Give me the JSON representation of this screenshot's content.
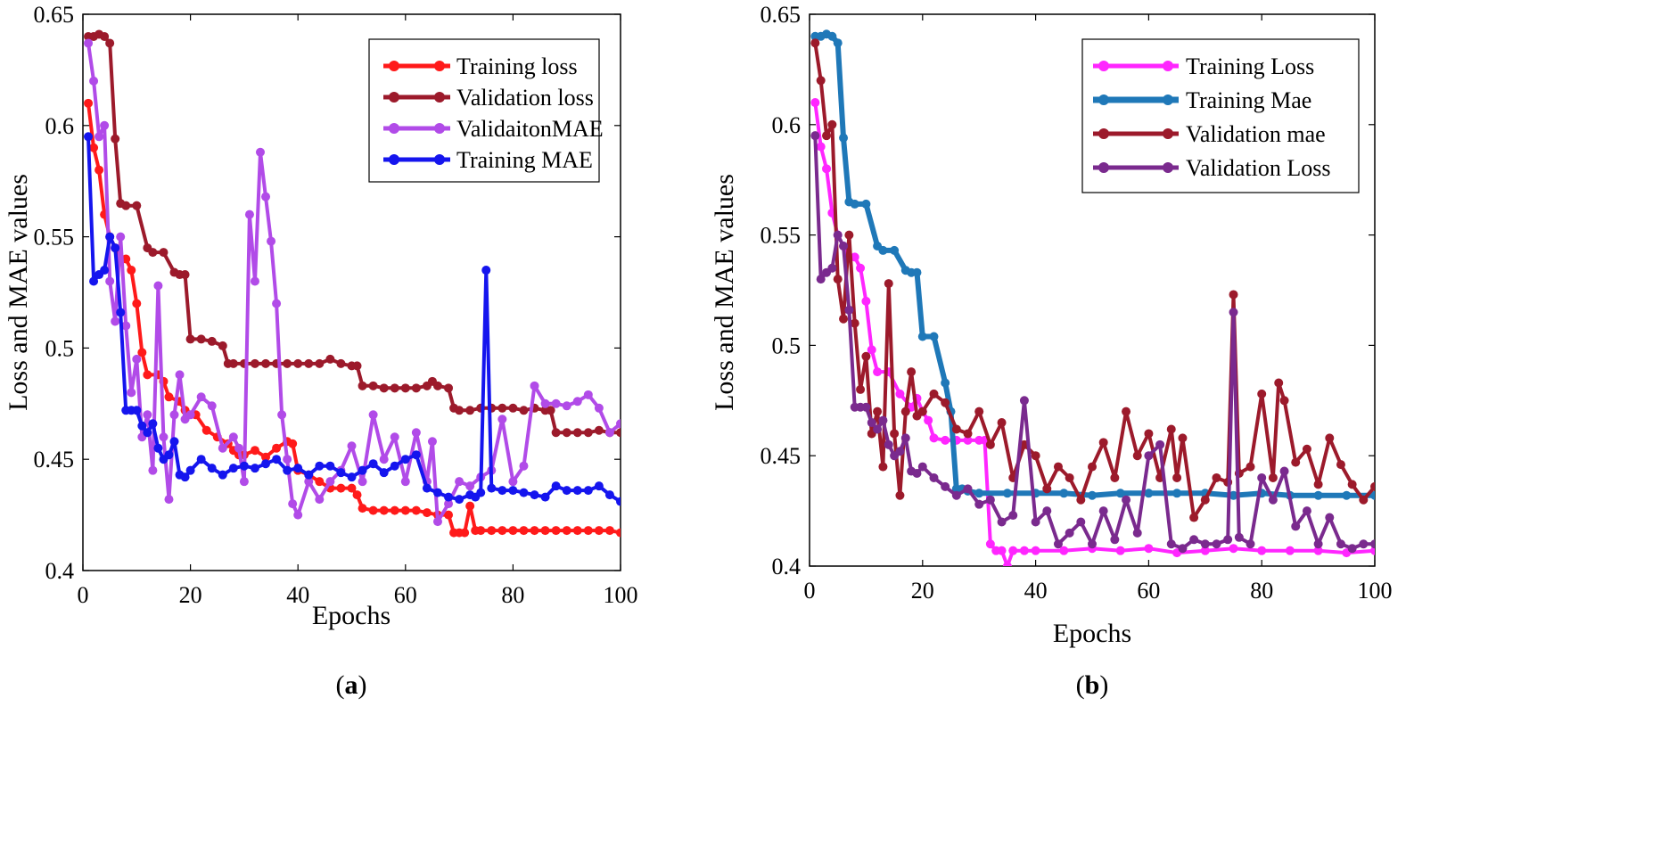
{
  "chart_data": [
    {
      "type": "line",
      "panel_label": "(a)",
      "xlabel": "Epochs",
      "ylabel": "Loss and MAE values",
      "xlim": [
        0,
        100
      ],
      "ylim": [
        0.4,
        0.65
      ],
      "xticks": [
        0,
        20,
        40,
        60,
        80,
        100
      ],
      "yticks": [
        0.4,
        0.45,
        0.5,
        0.55,
        0.6,
        0.65
      ],
      "xtick_labels": [
        "0",
        "20",
        "40",
        "60",
        "80",
        "100"
      ],
      "ytick_labels": [
        "0.4",
        "0.45",
        "0.5",
        "0.55",
        "0.6",
        "0.65"
      ],
      "legend_position": "top-right",
      "series": [
        {
          "name": "Training loss",
          "color": "#ff1a1a",
          "x": [
            1,
            2,
            3,
            4,
            5,
            6,
            7,
            8,
            9,
            10,
            11,
            12,
            14,
            15,
            16,
            18,
            19,
            21,
            23,
            25,
            27,
            28,
            29,
            30,
            32,
            34,
            36,
            38,
            39,
            40,
            42,
            44,
            46,
            48,
            50,
            51,
            52,
            54,
            56,
            58,
            60,
            62,
            64,
            66,
            68,
            69,
            70,
            71,
            72,
            73,
            74,
            76,
            78,
            80,
            82,
            84,
            86,
            88,
            90,
            92,
            94,
            96,
            98,
            100
          ],
          "y": [
            0.61,
            0.59,
            0.58,
            0.56,
            0.55,
            0.545,
            0.54,
            0.54,
            0.535,
            0.52,
            0.498,
            0.488,
            0.488,
            0.485,
            0.478,
            0.476,
            0.472,
            0.47,
            0.463,
            0.46,
            0.457,
            0.454,
            0.452,
            0.452,
            0.454,
            0.451,
            0.455,
            0.458,
            0.457,
            0.445,
            0.443,
            0.44,
            0.437,
            0.437,
            0.437,
            0.434,
            0.428,
            0.427,
            0.427,
            0.427,
            0.427,
            0.427,
            0.426,
            0.425,
            0.425,
            0.417,
            0.417,
            0.417,
            0.429,
            0.418,
            0.418,
            0.418,
            0.418,
            0.418,
            0.418,
            0.418,
            0.418,
            0.418,
            0.418,
            0.418,
            0.418,
            0.418,
            0.418,
            0.417
          ]
        },
        {
          "name": "Validation loss",
          "color": "#9c1a2b",
          "x": [
            1,
            2,
            3,
            4,
            5,
            6,
            7,
            8,
            10,
            12,
            13,
            15,
            17,
            18,
            19,
            20,
            22,
            24,
            26,
            27,
            28,
            30,
            32,
            34,
            36,
            38,
            40,
            42,
            44,
            46,
            48,
            50,
            51,
            52,
            54,
            56,
            58,
            60,
            62,
            64,
            65,
            66,
            68,
            69,
            70,
            72,
            74,
            76,
            78,
            80,
            82,
            84,
            86,
            87,
            88,
            90,
            92,
            94,
            96,
            98,
            100
          ],
          "y": [
            0.64,
            0.64,
            0.641,
            0.64,
            0.637,
            0.594,
            0.565,
            0.564,
            0.564,
            0.545,
            0.543,
            0.543,
            0.534,
            0.533,
            0.533,
            0.504,
            0.504,
            0.503,
            0.501,
            0.493,
            0.493,
            0.493,
            0.493,
            0.493,
            0.493,
            0.493,
            0.493,
            0.493,
            0.493,
            0.495,
            0.493,
            0.492,
            0.492,
            0.483,
            0.483,
            0.482,
            0.482,
            0.482,
            0.482,
            0.483,
            0.485,
            0.483,
            0.482,
            0.473,
            0.472,
            0.472,
            0.473,
            0.473,
            0.473,
            0.473,
            0.472,
            0.473,
            0.472,
            0.472,
            0.462,
            0.462,
            0.462,
            0.462,
            0.463,
            0.462,
            0.462
          ]
        },
        {
          "name": "ValidaitonMAE",
          "color": "#b14be8",
          "x": [
            1,
            2,
            3,
            4,
            5,
            6,
            7,
            8,
            9,
            10,
            11,
            12,
            13,
            14,
            15,
            16,
            17,
            18,
            19,
            20,
            22,
            24,
            26,
            28,
            29,
            30,
            31,
            32,
            33,
            34,
            35,
            36,
            37,
            38,
            39,
            40,
            42,
            44,
            46,
            48,
            50,
            52,
            54,
            56,
            58,
            60,
            62,
            64,
            65,
            66,
            68,
            70,
            72,
            74,
            76,
            78,
            80,
            82,
            84,
            86,
            88,
            90,
            92,
            94,
            96,
            98,
            100
          ],
          "y": [
            0.637,
            0.62,
            0.595,
            0.6,
            0.53,
            0.512,
            0.55,
            0.51,
            0.48,
            0.495,
            0.46,
            0.47,
            0.445,
            0.528,
            0.46,
            0.432,
            0.47,
            0.488,
            0.468,
            0.47,
            0.478,
            0.474,
            0.455,
            0.46,
            0.455,
            0.44,
            0.56,
            0.53,
            0.588,
            0.568,
            0.548,
            0.52,
            0.47,
            0.45,
            0.43,
            0.425,
            0.44,
            0.432,
            0.44,
            0.445,
            0.456,
            0.44,
            0.47,
            0.45,
            0.46,
            0.44,
            0.462,
            0.44,
            0.458,
            0.422,
            0.43,
            0.44,
            0.438,
            0.442,
            0.445,
            0.468,
            0.44,
            0.447,
            0.483,
            0.475,
            0.475,
            0.474,
            0.476,
            0.479,
            0.473,
            0.462,
            0.466
          ]
        },
        {
          "name": "Training MAE",
          "color": "#1515ee",
          "x": [
            1,
            2,
            3,
            4,
            5,
            6,
            7,
            8,
            9,
            10,
            11,
            12,
            13,
            14,
            15,
            16,
            17,
            18,
            19,
            20,
            22,
            24,
            26,
            28,
            30,
            32,
            34,
            36,
            38,
            40,
            42,
            44,
            46,
            48,
            50,
            52,
            54,
            56,
            58,
            60,
            62,
            64,
            66,
            68,
            70,
            72,
            73,
            74,
            75,
            76,
            78,
            80,
            82,
            84,
            86,
            88,
            90,
            92,
            94,
            96,
            98,
            100
          ],
          "y": [
            0.595,
            0.53,
            0.533,
            0.535,
            0.55,
            0.545,
            0.516,
            0.472,
            0.472,
            0.472,
            0.465,
            0.462,
            0.466,
            0.455,
            0.45,
            0.452,
            0.458,
            0.443,
            0.442,
            0.445,
            0.45,
            0.446,
            0.443,
            0.446,
            0.447,
            0.446,
            0.448,
            0.45,
            0.445,
            0.446,
            0.443,
            0.447,
            0.447,
            0.444,
            0.442,
            0.445,
            0.448,
            0.444,
            0.447,
            0.45,
            0.452,
            0.437,
            0.435,
            0.433,
            0.432,
            0.434,
            0.433,
            0.435,
            0.535,
            0.437,
            0.436,
            0.436,
            0.435,
            0.434,
            0.433,
            0.438,
            0.436,
            0.436,
            0.436,
            0.438,
            0.434,
            0.431
          ]
        }
      ]
    },
    {
      "type": "line",
      "panel_label": "(b)",
      "xlabel": "Epochs",
      "ylabel": "Loss and MAE values",
      "xlim": [
        0,
        100
      ],
      "ylim": [
        0.4,
        0.65
      ],
      "xticks": [
        0,
        20,
        40,
        60,
        80,
        100
      ],
      "yticks": [
        0.4,
        0.45,
        0.5,
        0.55,
        0.6,
        0.65
      ],
      "xtick_labels": [
        "0",
        "20",
        "40",
        "60",
        "80",
        "100"
      ],
      "ytick_labels": [
        "0.4",
        "0.45",
        "0.5",
        "0.55",
        "0.6",
        "0.65"
      ],
      "legend_position": "top-right",
      "series": [
        {
          "name": "Training Loss",
          "color": "#ff26ff",
          "x": [
            1,
            2,
            3,
            4,
            5,
            6,
            7,
            8,
            9,
            10,
            11,
            12,
            14,
            16,
            18,
            19,
            20,
            21,
            22,
            24,
            26,
            28,
            30,
            31,
            32,
            33,
            34,
            35,
            36,
            38,
            40,
            45,
            50,
            55,
            60,
            65,
            70,
            75,
            80,
            85,
            90,
            95,
            100
          ],
          "y": [
            0.61,
            0.59,
            0.58,
            0.56,
            0.55,
            0.545,
            0.54,
            0.54,
            0.535,
            0.52,
            0.498,
            0.488,
            0.488,
            0.478,
            0.472,
            0.476,
            0.47,
            0.466,
            0.458,
            0.457,
            0.457,
            0.457,
            0.457,
            0.457,
            0.41,
            0.407,
            0.407,
            0.4,
            0.407,
            0.407,
            0.407,
            0.407,
            0.408,
            0.407,
            0.408,
            0.406,
            0.407,
            0.408,
            0.407,
            0.407,
            0.407,
            0.406,
            0.407
          ]
        },
        {
          "name": "Training Mae",
          "color": "#1f78b8",
          "x": [
            1,
            2,
            3,
            4,
            5,
            6,
            7,
            8,
            10,
            12,
            13,
            15,
            17,
            18,
            19,
            20,
            22,
            24,
            25,
            26,
            27,
            28,
            30,
            35,
            40,
            45,
            50,
            55,
            60,
            65,
            70,
            75,
            80,
            85,
            90,
            95,
            100
          ],
          "y": [
            0.64,
            0.64,
            0.641,
            0.64,
            0.637,
            0.594,
            0.565,
            0.564,
            0.564,
            0.545,
            0.543,
            0.543,
            0.534,
            0.533,
            0.533,
            0.504,
            0.504,
            0.483,
            0.47,
            0.435,
            0.435,
            0.434,
            0.433,
            0.433,
            0.433,
            0.433,
            0.432,
            0.433,
            0.433,
            0.433,
            0.433,
            0.432,
            0.433,
            0.432,
            0.432,
            0.432,
            0.432
          ]
        },
        {
          "name": "Validation mae",
          "color": "#9c1a2b",
          "x": [
            1,
            2,
            3,
            4,
            5,
            6,
            7,
            8,
            9,
            10,
            11,
            12,
            13,
            14,
            15,
            16,
            17,
            18,
            19,
            20,
            22,
            24,
            26,
            28,
            30,
            32,
            34,
            36,
            38,
            40,
            42,
            44,
            46,
            48,
            50,
            52,
            54,
            56,
            58,
            60,
            62,
            64,
            65,
            66,
            68,
            70,
            72,
            74,
            75,
            76,
            78,
            80,
            82,
            83,
            84,
            86,
            88,
            90,
            92,
            94,
            96,
            98,
            100
          ],
          "y": [
            0.637,
            0.62,
            0.595,
            0.6,
            0.53,
            0.512,
            0.55,
            0.51,
            0.48,
            0.495,
            0.46,
            0.47,
            0.445,
            0.528,
            0.46,
            0.432,
            0.47,
            0.488,
            0.468,
            0.47,
            0.478,
            0.474,
            0.462,
            0.46,
            0.47,
            0.455,
            0.465,
            0.44,
            0.455,
            0.45,
            0.435,
            0.445,
            0.44,
            0.43,
            0.445,
            0.456,
            0.44,
            0.47,
            0.45,
            0.46,
            0.44,
            0.462,
            0.44,
            0.458,
            0.422,
            0.43,
            0.44,
            0.438,
            0.523,
            0.442,
            0.445,
            0.478,
            0.44,
            0.483,
            0.475,
            0.447,
            0.453,
            0.437,
            0.458,
            0.446,
            0.437,
            0.43,
            0.436
          ]
        },
        {
          "name": "Validation Loss",
          "color": "#7a2a8e",
          "x": [
            1,
            2,
            3,
            4,
            5,
            6,
            7,
            8,
            9,
            10,
            11,
            12,
            13,
            14,
            15,
            16,
            17,
            18,
            19,
            20,
            22,
            24,
            26,
            28,
            30,
            32,
            34,
            36,
            38,
            40,
            42,
            44,
            46,
            48,
            50,
            52,
            54,
            56,
            58,
            60,
            62,
            64,
            66,
            68,
            70,
            72,
            74,
            75,
            76,
            78,
            80,
            82,
            84,
            86,
            88,
            90,
            92,
            94,
            96,
            98,
            100
          ],
          "y": [
            0.595,
            0.53,
            0.533,
            0.535,
            0.55,
            0.545,
            0.516,
            0.472,
            0.472,
            0.472,
            0.465,
            0.462,
            0.466,
            0.455,
            0.45,
            0.452,
            0.458,
            0.443,
            0.442,
            0.445,
            0.44,
            0.436,
            0.432,
            0.435,
            0.428,
            0.43,
            0.42,
            0.423,
            0.475,
            0.42,
            0.425,
            0.41,
            0.415,
            0.42,
            0.41,
            0.425,
            0.412,
            0.43,
            0.415,
            0.45,
            0.455,
            0.41,
            0.408,
            0.412,
            0.41,
            0.41,
            0.412,
            0.515,
            0.413,
            0.41,
            0.44,
            0.43,
            0.443,
            0.418,
            0.425,
            0.41,
            0.422,
            0.41,
            0.408,
            0.41,
            0.41
          ]
        }
      ]
    }
  ]
}
